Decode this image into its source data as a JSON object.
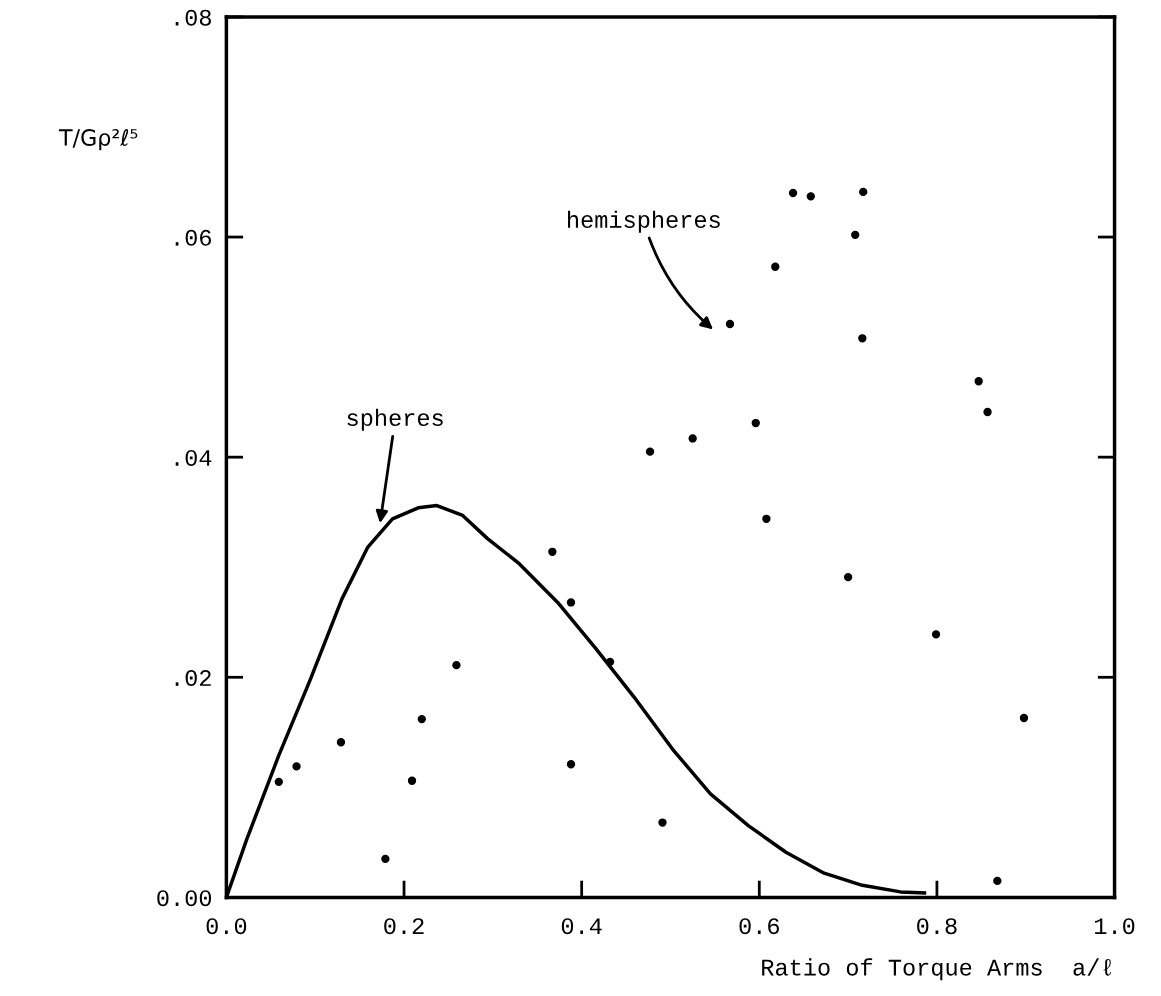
{
  "chart_data": {
    "type": "scatter",
    "xlabel": "Ratio of Torque Arms  a/ℓ",
    "ylabel": "T/Gρ²ℓ⁵",
    "xlim": [
      0,
      1.0
    ],
    "ylim": [
      0,
      0.08
    ],
    "xticks": [
      {
        "value": 0,
        "label": "0.0"
      },
      {
        "value": 0.2,
        "label": "0.2"
      },
      {
        "value": 0.4,
        "label": "0.4"
      },
      {
        "value": 0.6,
        "label": "0.6"
      },
      {
        "value": 0.8,
        "label": "0.8"
      },
      {
        "value": 1.0,
        "label": "1.0"
      }
    ],
    "yticks": [
      {
        "value": 0,
        "label": "0.00"
      },
      {
        "value": 0.02,
        "label": ".02"
      },
      {
        "value": 0.04,
        "label": ".04"
      },
      {
        "value": 0.06,
        "label": ".06"
      },
      {
        "value": 0.08,
        "label": ".08"
      }
    ],
    "grid": false,
    "legend": false,
    "marker": "circle",
    "series": [
      {
        "color": "#000000",
        "x": [
          0.059,
          0.079,
          0.129,
          0.179,
          0.209,
          0.22,
          0.259,
          0.367,
          0.388,
          0.388,
          0.432,
          0.491,
          0.608,
          0.7,
          0.799,
          0.868,
          0.898,
          0.638,
          0.658,
          0.717,
          0.708,
          0.618,
          0.567,
          0.716,
          0.847,
          0.857,
          0.596,
          0.525,
          0.477
        ],
        "values": [
          0.0105,
          0.0119,
          0.0141,
          0.0035,
          0.0106,
          0.0162,
          0.0211,
          0.0314,
          0.0268,
          0.0121,
          0.0214,
          0.0068,
          0.0344,
          0.0291,
          0.0239,
          0.0015,
          0.0163,
          0.064,
          0.0637,
          0.0641,
          0.0602,
          0.0573,
          0.0521,
          0.0508,
          0.0469,
          0.0441,
          0.0431,
          0.0417,
          0.0405
        ]
      },
      {
        "type": "line",
        "color": "#000000",
        "marker": "none",
        "line_style": "solid",
        "x": [
          0,
          0.023,
          0.059,
          0.094,
          0.13,
          0.159,
          0.187,
          0.216,
          0.237,
          0.266,
          0.294,
          0.33,
          0.373,
          0.416,
          0.459,
          0.502,
          0.545,
          0.588,
          0.63,
          0.673,
          0.716,
          0.759,
          0.786
        ],
        "values": [
          0,
          0.0053,
          0.0129,
          0.0197,
          0.0271,
          0.0318,
          0.0344,
          0.0354,
          0.0356,
          0.0347,
          0.0326,
          0.0303,
          0.0268,
          0.0226,
          0.0182,
          0.0135,
          0.0094,
          0.0065,
          0.0041,
          0.0022,
          0.0011,
          0.0005,
          0.0004
        ]
      }
    ],
    "annotations": [
      "spheres",
      "hemispheres"
    ]
  }
}
